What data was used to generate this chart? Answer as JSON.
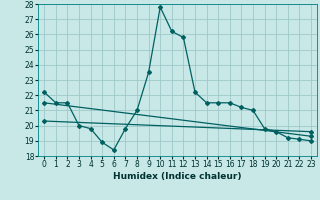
{
  "xlabel": "Humidex (Indice chaleur)",
  "background_color": "#c8e8e8",
  "grid_color": "#a0c8c8",
  "line_color": "#006060",
  "xlim": [
    -0.5,
    23.5
  ],
  "ylim": [
    18,
    28
  ],
  "yticks": [
    18,
    19,
    20,
    21,
    22,
    23,
    24,
    25,
    26,
    27,
    28
  ],
  "xticks": [
    0,
    1,
    2,
    3,
    4,
    5,
    6,
    7,
    8,
    9,
    10,
    11,
    12,
    13,
    14,
    15,
    16,
    17,
    18,
    19,
    20,
    21,
    22,
    23
  ],
  "series1_x": [
    0,
    1,
    2,
    3,
    4,
    5,
    6,
    7,
    8,
    9,
    10,
    11,
    12,
    13,
    14,
    15,
    16,
    17,
    18,
    19,
    20,
    21,
    22,
    23
  ],
  "series1_y": [
    22.2,
    21.5,
    21.5,
    20.0,
    19.8,
    18.9,
    18.4,
    19.8,
    21.0,
    23.5,
    27.8,
    26.2,
    25.8,
    22.2,
    21.5,
    21.5,
    21.5,
    21.2,
    21.0,
    19.8,
    19.6,
    19.2,
    19.1,
    19.0
  ],
  "series2_x": [
    0,
    23
  ],
  "series2_y": [
    21.5,
    19.3
  ],
  "series3_x": [
    0,
    23
  ],
  "series3_y": [
    20.3,
    19.6
  ],
  "xlabel_fontsize": 6.5,
  "tick_fontsize": 5.5
}
